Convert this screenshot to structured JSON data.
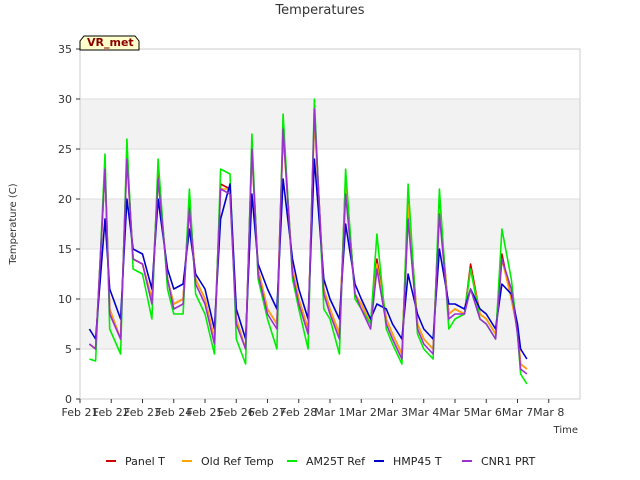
{
  "chart_data": {
    "type": "line",
    "title": "Temperatures",
    "xlabel": "Time",
    "ylabel": "Temperature (C)",
    "ylim": [
      0,
      35
    ],
    "xlim": [
      0,
      16
    ],
    "yticks": [
      0,
      5,
      10,
      15,
      20,
      25,
      30,
      35
    ],
    "xtick_labels": [
      "Feb 21",
      "Feb 22",
      "Feb 23",
      "Feb 24",
      "Feb 25",
      "Feb 26",
      "Feb 27",
      "Feb 28",
      "Mar 1",
      "Mar 2",
      "Mar 3",
      "Mar 4",
      "Mar 5",
      "Mar 6",
      "Mar 7",
      "Mar 8"
    ],
    "badge": "VR_met",
    "banded_background": true,
    "legend_position": "bottom-center",
    "series": [
      {
        "name": "Panel T",
        "color": "#cc0000",
        "x": [
          0.3,
          0.5,
          0.8,
          0.95,
          1.3,
          1.5,
          1.7,
          2.0,
          2.3,
          2.5,
          2.8,
          3.0,
          3.3,
          3.5,
          3.7,
          4.0,
          4.3,
          4.5,
          4.8,
          5.0,
          5.3,
          5.5,
          5.7,
          6.0,
          6.3,
          6.5,
          6.8,
          7.0,
          7.3,
          7.5,
          7.8,
          8.0,
          8.3,
          8.5,
          8.8,
          9.0,
          9.3,
          9.5,
          9.8,
          10.0,
          10.3,
          10.5,
          10.8,
          11.0,
          11.3,
          11.5,
          11.8,
          12.0,
          12.3,
          12.5,
          12.8,
          13.0,
          13.3,
          13.5,
          13.8,
          14.0,
          14.1,
          14.3
        ],
        "y": [
          5.5,
          5.0,
          23.0,
          9.0,
          6.0,
          24.5,
          14.0,
          13.5,
          10.0,
          22.5,
          12.0,
          9.5,
          10.0,
          19.5,
          12.0,
          10.0,
          6.0,
          21.5,
          21.0,
          8.0,
          5.0,
          25.0,
          13.0,
          9.0,
          7.5,
          27.0,
          13.0,
          10.0,
          7.0,
          28.5,
          11.0,
          9.0,
          6.5,
          22.0,
          10.5,
          9.5,
          7.5,
          14.0,
          8.0,
          6.5,
          4.5,
          20.0,
          7.5,
          6.0,
          5.0,
          19.5,
          8.5,
          9.0,
          8.5,
          13.5,
          8.5,
          8.0,
          6.5,
          14.5,
          10.0,
          7.0,
          3.5,
          3.0
        ]
      },
      {
        "name": "Old Ref Temp",
        "color": "#ffa500",
        "x": [
          0.3,
          0.5,
          0.8,
          0.95,
          1.3,
          1.5,
          1.7,
          2.0,
          2.3,
          2.5,
          2.8,
          3.0,
          3.3,
          3.5,
          3.7,
          4.0,
          4.3,
          4.5,
          4.8,
          5.0,
          5.3,
          5.5,
          5.7,
          6.0,
          6.3,
          6.5,
          6.8,
          7.0,
          7.3,
          7.5,
          7.8,
          8.0,
          8.3,
          8.5,
          8.8,
          9.0,
          9.3,
          9.5,
          9.8,
          10.0,
          10.3,
          10.5,
          10.8,
          11.0,
          11.3,
          11.5,
          11.8,
          12.0,
          12.3,
          12.5,
          12.8,
          13.0,
          13.3,
          13.5,
          13.8,
          14.0,
          14.1,
          14.3
        ],
        "y": [
          5.5,
          5.0,
          23.0,
          9.0,
          6.0,
          24.0,
          14.0,
          13.5,
          10.0,
          22.0,
          12.0,
          9.5,
          10.0,
          19.0,
          12.0,
          10.0,
          6.0,
          21.0,
          21.0,
          8.0,
          5.0,
          24.5,
          13.0,
          9.0,
          7.5,
          26.5,
          13.0,
          10.0,
          7.0,
          28.0,
          11.0,
          9.0,
          6.5,
          21.5,
          10.5,
          9.5,
          7.5,
          13.5,
          8.0,
          6.5,
          4.5,
          19.5,
          7.5,
          6.0,
          5.0,
          19.0,
          8.5,
          9.0,
          8.5,
          13.0,
          8.5,
          8.0,
          6.5,
          14.0,
          10.0,
          7.0,
          3.5,
          3.0
        ]
      },
      {
        "name": "AM25T Ref",
        "color": "#00ee00",
        "x": [
          0.3,
          0.5,
          0.8,
          0.95,
          1.3,
          1.5,
          1.7,
          2.0,
          2.3,
          2.5,
          2.8,
          3.0,
          3.3,
          3.5,
          3.7,
          4.0,
          4.3,
          4.5,
          4.8,
          5.0,
          5.3,
          5.5,
          5.7,
          6.0,
          6.3,
          6.5,
          6.8,
          7.0,
          7.3,
          7.5,
          7.8,
          8.0,
          8.3,
          8.5,
          8.8,
          9.0,
          9.3,
          9.5,
          9.8,
          10.0,
          10.3,
          10.5,
          10.8,
          11.0,
          11.3,
          11.5,
          11.8,
          12.0,
          12.3,
          12.5,
          12.8,
          13.0,
          13.3,
          13.5,
          13.8,
          14.0,
          14.1,
          14.3
        ],
        "y": [
          4.0,
          3.8,
          24.5,
          7.0,
          4.5,
          26.0,
          13.0,
          12.5,
          8.0,
          24.0,
          11.0,
          8.5,
          8.5,
          21.0,
          10.5,
          8.5,
          4.5,
          23.0,
          22.5,
          6.0,
          3.5,
          26.5,
          12.0,
          8.0,
          5.0,
          28.5,
          12.0,
          9.0,
          5.0,
          30.0,
          9.0,
          8.0,
          4.5,
          23.0,
          10.0,
          9.0,
          7.5,
          16.5,
          7.0,
          5.5,
          3.5,
          21.5,
          6.5,
          5.0,
          4.0,
          21.0,
          7.0,
          8.0,
          8.5,
          13.0,
          8.0,
          7.5,
          6.0,
          17.0,
          12.0,
          6.5,
          2.5,
          1.5
        ]
      },
      {
        "name": "HMP45 T",
        "color": "#0000cc",
        "x": [
          0.3,
          0.5,
          0.8,
          0.95,
          1.3,
          1.5,
          1.7,
          2.0,
          2.3,
          2.5,
          2.8,
          3.0,
          3.3,
          3.5,
          3.7,
          4.0,
          4.3,
          4.5,
          4.8,
          5.0,
          5.3,
          5.5,
          5.7,
          6.0,
          6.3,
          6.5,
          6.8,
          7.0,
          7.3,
          7.5,
          7.8,
          8.0,
          8.3,
          8.5,
          8.8,
          9.0,
          9.3,
          9.5,
          9.8,
          10.0,
          10.3,
          10.5,
          10.8,
          11.0,
          11.3,
          11.5,
          11.8,
          12.0,
          12.3,
          12.5,
          12.8,
          13.0,
          13.3,
          13.5,
          13.8,
          14.0,
          14.1,
          14.3
        ],
        "y": [
          7.0,
          6.0,
          18.0,
          11.0,
          8.0,
          20.0,
          15.0,
          14.5,
          11.0,
          20.0,
          13.0,
          11.0,
          11.5,
          17.0,
          12.5,
          11.0,
          7.0,
          18.0,
          21.5,
          9.0,
          6.0,
          20.5,
          13.5,
          11.0,
          9.0,
          22.0,
          14.0,
          11.0,
          8.0,
          24.0,
          12.0,
          10.0,
          8.0,
          17.5,
          11.5,
          10.0,
          8.0,
          9.5,
          9.0,
          7.5,
          6.0,
          12.5,
          8.5,
          7.0,
          6.0,
          15.0,
          9.5,
          9.5,
          9.0,
          11.0,
          9.0,
          8.5,
          7.0,
          11.5,
          10.5,
          7.5,
          5.0,
          4.0
        ]
      },
      {
        "name": "CNR1 PRT",
        "color": "#9933cc",
        "x": [
          0.3,
          0.5,
          0.8,
          0.95,
          1.3,
          1.5,
          1.7,
          2.0,
          2.3,
          2.5,
          2.8,
          3.0,
          3.3,
          3.5,
          3.7,
          4.0,
          4.3,
          4.5,
          4.8,
          5.0,
          5.3,
          5.5,
          5.7,
          6.0,
          6.3,
          6.5,
          6.8,
          7.0,
          7.3,
          7.5,
          7.8,
          8.0,
          8.3,
          8.5,
          8.8,
          9.0,
          9.3,
          9.5,
          9.8,
          10.0,
          10.3,
          10.5,
          10.8,
          11.0,
          11.3,
          11.5,
          11.8,
          12.0,
          12.3,
          12.5,
          12.8,
          13.0,
          13.3,
          13.5,
          13.8,
          14.0,
          14.1,
          14.3
        ],
        "y": [
          5.5,
          5.0,
          23.0,
          8.5,
          6.0,
          24.0,
          14.0,
          13.5,
          9.5,
          22.0,
          12.0,
          9.0,
          9.5,
          19.0,
          11.5,
          9.5,
          5.5,
          21.0,
          20.5,
          7.5,
          5.0,
          25.0,
          12.5,
          8.5,
          7.0,
          27.0,
          12.5,
          9.5,
          6.5,
          29.0,
          10.5,
          8.5,
          6.0,
          20.5,
          10.5,
          9.0,
          7.0,
          13.0,
          7.5,
          6.0,
          4.0,
          18.0,
          7.0,
          5.5,
          4.5,
          18.5,
          8.0,
          8.5,
          8.5,
          11.0,
          8.0,
          7.5,
          6.0,
          14.0,
          11.0,
          6.5,
          3.0,
          2.5
        ]
      }
    ]
  }
}
